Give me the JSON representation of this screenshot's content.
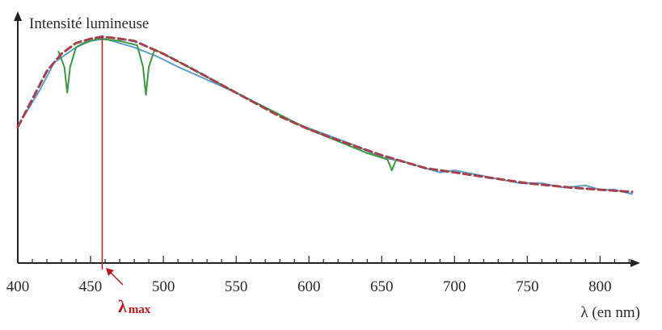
{
  "chart_data": {
    "type": "line",
    "title": "",
    "ylabel": "Intensité lumineuse",
    "xlabel": "λ (en nm)",
    "xlim": [
      400,
      822
    ],
    "ylim": [
      0,
      1.1
    ],
    "xticks": [
      400,
      450,
      500,
      550,
      600,
      650,
      700,
      750,
      800
    ],
    "x_minor_step": 10,
    "grid": false,
    "peak": {
      "symbol": "λ",
      "subscript": "max",
      "x": 458,
      "color": "#c0151b"
    },
    "series": [
      {
        "style": "dashed",
        "color": "#a3404e",
        "x": [
          400,
          410,
          420,
          430,
          440,
          450,
          458,
          470,
          480,
          500,
          520,
          550,
          580,
          600,
          620,
          650,
          680,
          700,
          720,
          750,
          780,
          800,
          822
        ],
        "y": [
          0.63,
          0.76,
          0.89,
          0.97,
          1.02,
          1.04,
          1.05,
          1.04,
          1.03,
          0.97,
          0.9,
          0.79,
          0.68,
          0.62,
          0.57,
          0.5,
          0.44,
          0.42,
          0.4,
          0.37,
          0.35,
          0.34,
          0.33
        ]
      },
      {
        "style": "solid",
        "color": "#5d9fc7",
        "x": [
          405,
          415,
          425,
          440,
          450,
          460,
          470,
          480,
          495,
          510,
          530,
          550,
          570,
          590,
          610,
          630,
          650,
          665,
          680,
          690,
          700,
          715,
          730,
          745,
          760,
          775,
          790,
          800,
          810,
          822
        ],
        "y": [
          0.69,
          0.8,
          0.93,
          1.0,
          1.03,
          1.04,
          1.02,
          1.0,
          0.96,
          0.91,
          0.85,
          0.79,
          0.72,
          0.65,
          0.6,
          0.55,
          0.49,
          0.47,
          0.44,
          0.42,
          0.43,
          0.41,
          0.39,
          0.37,
          0.37,
          0.35,
          0.36,
          0.34,
          0.34,
          0.32
        ]
      },
      {
        "style": "solid",
        "color": "#3a9a3e",
        "x": [
          428,
          432,
          434,
          436,
          440,
          445,
          455,
          470,
          482,
          486,
          488,
          490,
          494,
          500,
          520,
          550,
          600,
          640,
          654,
          657,
          660,
          670
        ],
        "y": [
          0.98,
          0.91,
          0.79,
          0.91,
          1.0,
          1.02,
          1.04,
          1.03,
          1.01,
          0.91,
          0.78,
          0.91,
          0.99,
          0.97,
          0.9,
          0.79,
          0.62,
          0.51,
          0.48,
          0.43,
          0.48,
          0.46
        ]
      }
    ]
  }
}
